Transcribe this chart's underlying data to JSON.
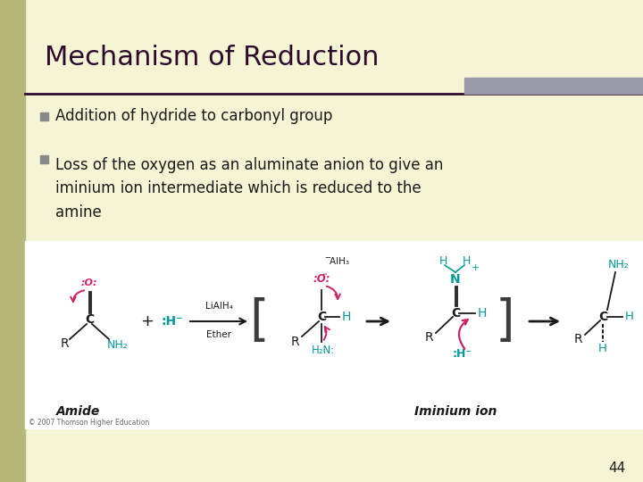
{
  "title": "Mechanism of Reduction",
  "title_color": "#2d0a2e",
  "title_fontsize": 22,
  "background_color": "#f5f5d5",
  "left_bar_color": "#b5b878",
  "top_right_bar_color": "#9999aa",
  "separator_line_color": "#2d0a2e",
  "bullet_color": "#888888",
  "bullet1": "Addition of hydride to carbonyl group",
  "bullet2": "Loss of the oxygen as an aluminate anion to give an\niminium ion intermediate which is reduced to the\namine",
  "text_color": "#1a1a1a",
  "text_fontsize": 12,
  "page_number": "44",
  "page_num_color": "#1a1a1a",
  "img_bg_color": "#ffffff",
  "pink": "#cc2266",
  "teal": "#009999",
  "dark": "#2d0a2e",
  "black": "#1a1a1a"
}
